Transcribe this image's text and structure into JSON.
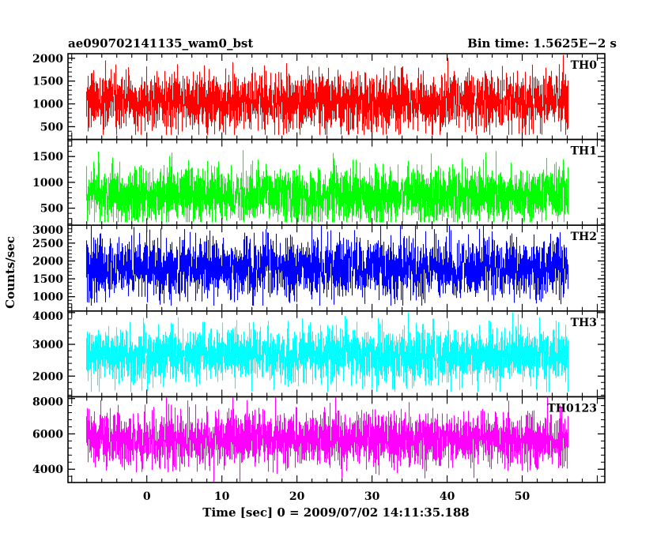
{
  "header": {
    "left_title": "ae090702141135_wam0_bst",
    "right_title": "Bin time: 1.5625E−2 s"
  },
  "chart_data": {
    "type": "line",
    "xlabel": "Time [sec] 0 = 2009/07/02 14:11:35.188",
    "ylabel": "Counts/sec",
    "xlim": [
      -10.5,
      61
    ],
    "x_ticks": [
      0,
      10,
      20,
      30,
      40,
      50
    ],
    "x_tick_labels": [
      "0",
      "10",
      "20",
      "30",
      "40",
      "50"
    ],
    "data_x_range": [
      -8,
      56
    ],
    "bin_time_s": 0.015625,
    "grid": false,
    "panels": [
      {
        "name": "TH0",
        "color": "#ff0000",
        "ylim": [
          220,
          2100
        ],
        "yticks": [
          500,
          1000,
          1500,
          2000
        ],
        "ytick_labels": [
          "500",
          "1000",
          "1500",
          "2000"
        ],
        "mean": 1050,
        "sd": 310,
        "min": 320,
        "max": 2100
      },
      {
        "name": "TH1",
        "color": "#00ff00",
        "ylim": [
          170,
          1830
        ],
        "yticks": [
          500,
          1000,
          1500
        ],
        "ytick_labels": [
          "500",
          "1000",
          "1500"
        ],
        "mean": 760,
        "sd": 270,
        "min": 230,
        "max": 1830
      },
      {
        "name": "TH2",
        "color": "#0000ff",
        "ylim": [
          600,
          3000
        ],
        "yticks": [
          1000,
          1500,
          2000,
          2500,
          3000
        ],
        "ytick_labels": [
          "1000",
          "1500",
          "2000",
          "2500",
          "3000"
        ],
        "mean": 1800,
        "sd": 420,
        "min": 750,
        "max": 3000
      },
      {
        "name": "TH3",
        "color": "#00ffff",
        "ylim": [
          1350,
          4050
        ],
        "yticks": [
          2000,
          3000,
          4000
        ],
        "ytick_labels": [
          "2000",
          "3000",
          "4000"
        ],
        "mean": 2650,
        "sd": 420,
        "min": 1500,
        "max": 4000
      },
      {
        "name": "TH0123",
        "color": "#ff00ff",
        "ylim": [
          3250,
          8100
        ],
        "yticks": [
          4000,
          6000,
          8000
        ],
        "ytick_labels": [
          "4000",
          "6000",
          "8000"
        ],
        "mean": 5700,
        "sd": 780,
        "min": 3300,
        "max": 8100
      }
    ]
  }
}
